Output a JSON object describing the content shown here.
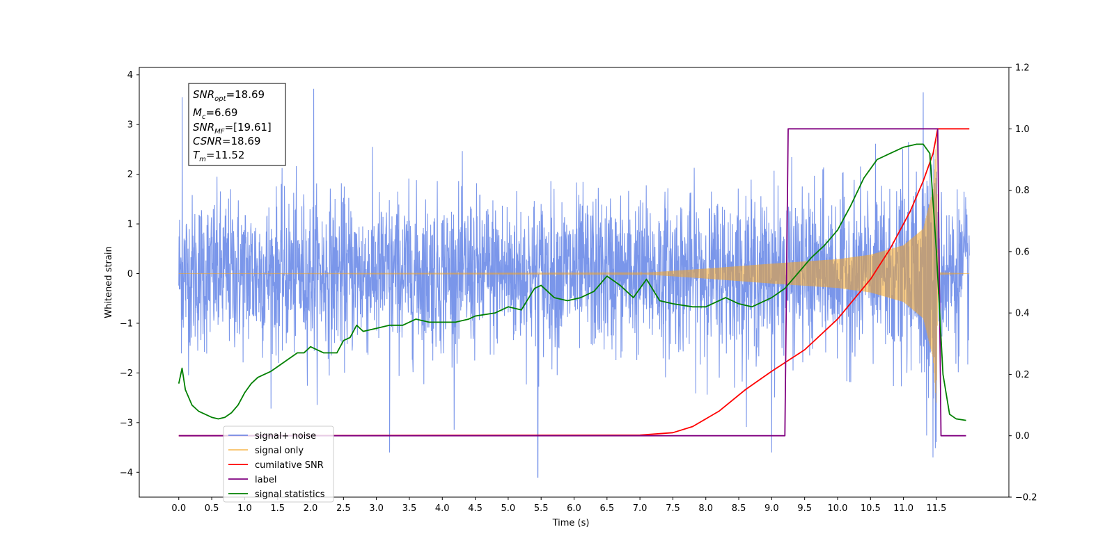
{
  "chart_data": {
    "type": "line",
    "xlabel": "Time (s)",
    "ylabel": "Whitened strain",
    "xlim": [
      -0.6,
      12.6
    ],
    "ylim": [
      -4.5,
      4.15
    ],
    "y2lim": [
      -0.2,
      1.2
    ],
    "x_ticks": [
      "0.0",
      "0.5",
      "1.0",
      "1.5",
      "2.0",
      "2.5",
      "3.0",
      "3.5",
      "4.0",
      "4.5",
      "5.0",
      "5.5",
      "6.0",
      "6.5",
      "7.0",
      "7.5",
      "8.0",
      "8.5",
      "9.0",
      "9.5",
      "10.0",
      "10.5",
      "11.0",
      "11.5"
    ],
    "y_ticks": [
      "4",
      "3",
      "2",
      "1",
      "0",
      "−1",
      "−2",
      "−3",
      "−4"
    ],
    "y2_ticks": [
      "1.2",
      "1.0",
      "0.8",
      "0.6",
      "0.4",
      "0.2",
      "0.0",
      "−0.2"
    ],
    "grid": false,
    "legend_position": "lower-left",
    "annotation": {
      "lines": [
        {
          "base": "SNR",
          "sub": "opt",
          "value": "=18.69"
        },
        {
          "base": "M",
          "sub": "c",
          "value": "=6.69"
        },
        {
          "base": "SNR",
          "sub": "MF",
          "value": "=[19.61]"
        },
        {
          "base": "CSNR",
          "sub": "",
          "value": "=18.69"
        },
        {
          "base": "T",
          "sub": "m",
          "value": "=11.52"
        }
      ]
    },
    "series": [
      {
        "name": "signal+ noise",
        "color": "#4169e1",
        "axis": "left",
        "kind": "noisy",
        "x_range": [
          0.0,
          12.0
        ],
        "noise_sigma": 0.78,
        "spike_extremes": [
          [
            0.05,
            3.55
          ],
          [
            2.05,
            3.72
          ],
          [
            11.3,
            3.65
          ],
          [
            5.45,
            -4.1
          ],
          [
            3.2,
            -3.6
          ],
          [
            11.45,
            -3.7
          ],
          [
            9.0,
            -3.6
          ]
        ]
      },
      {
        "name": "signal only",
        "color": "#f5a623",
        "axis": "left",
        "kind": "chirp_envelope",
        "envelope": [
          [
            0.0,
            0.0
          ],
          [
            7.0,
            0.01
          ],
          [
            8.0,
            0.1
          ],
          [
            9.0,
            0.2
          ],
          [
            10.0,
            0.29
          ],
          [
            10.5,
            0.38
          ],
          [
            11.0,
            0.57
          ],
          [
            11.3,
            0.9
          ],
          [
            11.45,
            1.7
          ],
          [
            11.5,
            2.7
          ],
          [
            11.52,
            0.5
          ],
          [
            11.55,
            0.01
          ],
          [
            12.0,
            0.0
          ]
        ]
      },
      {
        "name": "cumilative SNR",
        "color": "#ff0000",
        "axis": "right",
        "x": [
          0.0,
          7.0,
          7.5,
          7.8,
          8.2,
          8.6,
          9.0,
          9.5,
          10.0,
          10.5,
          10.8,
          11.1,
          11.3,
          11.45,
          11.52,
          11.6,
          12.0
        ],
        "y": [
          0.0,
          0.002,
          0.01,
          0.03,
          0.08,
          0.15,
          0.21,
          0.28,
          0.38,
          0.51,
          0.61,
          0.73,
          0.83,
          0.92,
          1.0,
          1.0,
          1.0
        ]
      },
      {
        "name": "label",
        "color": "#800080",
        "axis": "right",
        "x": [
          0.0,
          9.2,
          9.25,
          11.52,
          11.57,
          11.95
        ],
        "y": [
          0.0,
          0.0,
          1.0,
          1.0,
          0.0,
          0.0
        ]
      },
      {
        "name": "signal statistics",
        "color": "#008000",
        "axis": "right",
        "x": [
          0.0,
          0.05,
          0.1,
          0.2,
          0.3,
          0.4,
          0.5,
          0.6,
          0.7,
          0.8,
          0.9,
          1.0,
          1.1,
          1.2,
          1.4,
          1.6,
          1.8,
          1.9,
          2.0,
          2.2,
          2.4,
          2.5,
          2.6,
          2.7,
          2.8,
          3.0,
          3.2,
          3.4,
          3.6,
          3.8,
          4.0,
          4.2,
          4.4,
          4.5,
          4.8,
          5.0,
          5.2,
          5.4,
          5.5,
          5.7,
          5.9,
          6.1,
          6.3,
          6.5,
          6.7,
          6.9,
          7.1,
          7.3,
          7.5,
          7.8,
          8.0,
          8.3,
          8.5,
          8.7,
          9.0,
          9.2,
          9.4,
          9.6,
          9.8,
          10.0,
          10.2,
          10.4,
          10.6,
          10.8,
          11.0,
          11.2,
          11.3,
          11.4,
          11.5,
          11.6,
          11.7,
          11.8,
          11.95
        ],
        "y": [
          0.17,
          0.22,
          0.15,
          0.1,
          0.08,
          0.07,
          0.06,
          0.055,
          0.06,
          0.075,
          0.1,
          0.14,
          0.17,
          0.19,
          0.21,
          0.24,
          0.27,
          0.27,
          0.29,
          0.27,
          0.27,
          0.31,
          0.32,
          0.36,
          0.34,
          0.35,
          0.36,
          0.36,
          0.38,
          0.37,
          0.37,
          0.37,
          0.38,
          0.39,
          0.4,
          0.42,
          0.41,
          0.48,
          0.49,
          0.45,
          0.44,
          0.45,
          0.47,
          0.52,
          0.49,
          0.45,
          0.51,
          0.44,
          0.43,
          0.42,
          0.42,
          0.45,
          0.43,
          0.42,
          0.45,
          0.48,
          0.53,
          0.58,
          0.62,
          0.67,
          0.75,
          0.84,
          0.9,
          0.92,
          0.94,
          0.95,
          0.95,
          0.92,
          0.6,
          0.2,
          0.07,
          0.055,
          0.05
        ]
      }
    ]
  }
}
